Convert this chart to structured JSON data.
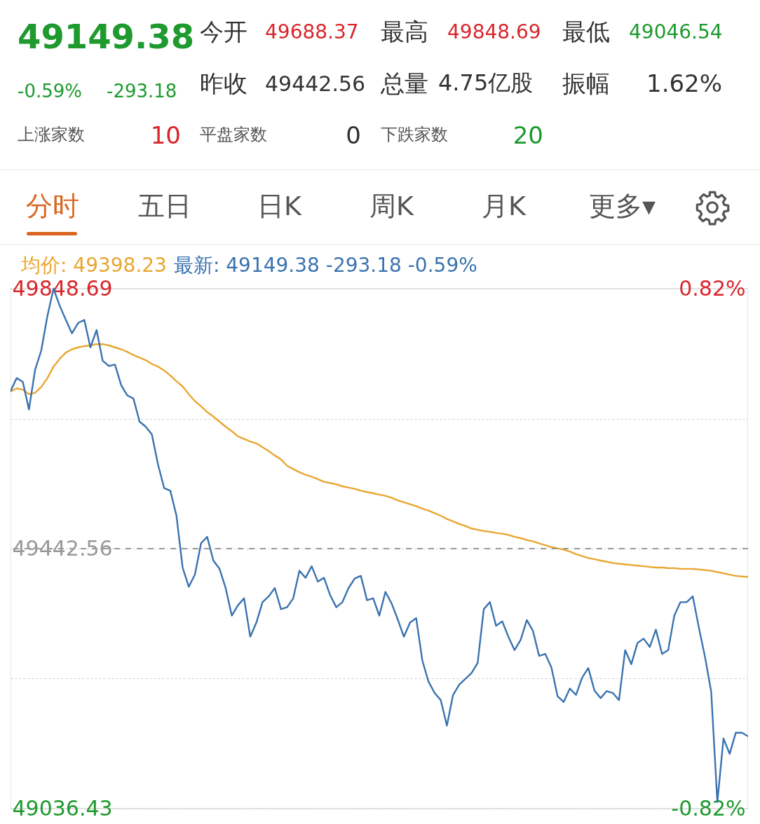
{
  "chart_data": {
    "type": "line",
    "annotations": [
      "49149.38",
      "-0.59%",
      "-293.18",
      "今开",
      "49688.37",
      "最高",
      "49848.69",
      "最低",
      "49046.54",
      "昨收",
      "49442.56",
      "总量",
      "4.75亿股",
      "振幅",
      "1.62%",
      "上涨家数",
      "10",
      "平盘家数",
      "0",
      "下跌家数",
      "20",
      "分时",
      "五日",
      "日K",
      "周K",
      "月K",
      "更多▾"
    ],
    "categories": [
      null,
      null,
      null,
      null,
      null,
      null,
      null,
      null,
      null,
      null,
      null,
      null,
      null,
      null,
      null,
      null,
      null,
      null,
      null,
      null,
      null,
      null,
      null,
      null,
      null,
      null,
      null,
      null,
      null,
      null,
      null,
      null,
      null,
      null,
      null,
      null,
      null,
      null,
      null,
      null,
      null,
      null,
      null,
      null,
      null,
      null,
      null,
      null,
      null,
      null,
      null,
      null,
      null,
      null,
      null,
      null,
      null,
      null,
      null,
      null,
      null,
      null,
      null,
      null,
      null,
      null,
      null,
      null,
      null,
      null,
      null,
      null,
      null,
      null,
      null,
      null,
      null,
      null,
      null,
      null,
      null,
      null,
      null,
      null,
      null,
      null,
      null,
      null,
      null,
      null,
      null,
      null,
      null,
      null,
      null,
      null,
      null,
      null,
      null,
      null,
      null,
      null,
      null,
      null,
      null,
      null,
      null,
      null,
      null,
      null,
      null,
      null,
      null,
      null,
      null,
      null,
      null,
      null,
      null,
      null,
      null
    ],
    "series": [
      {
        "name": "均价: 49398.23",
        "color": "#e9a630",
        "values": [
          49688,
          49693,
          49691,
          49684,
          49686,
          49695,
          49709,
          49727,
          49739,
          49749,
          49754,
          49757,
          49759,
          49760,
          49762,
          49762,
          49760,
          49757,
          49754,
          49750,
          49745,
          49741,
          49737,
          49731,
          49727,
          49721,
          49713,
          49704,
          49696,
          49684,
          49673,
          49665,
          49656,
          49649,
          49641,
          49633,
          49626,
          49618,
          49614,
          49610,
          49607,
          49601,
          49595,
          49588,
          49582,
          49572,
          49567,
          49562,
          49558,
          49555,
          49551,
          49547,
          49545,
          49543,
          49540,
          49538,
          49536,
          49533,
          49531,
          49529,
          49527,
          49525,
          49522,
          49518,
          49515,
          49512,
          49509,
          49505,
          49502,
          49498,
          49494,
          49489,
          49485,
          49481,
          49478,
          49474,
          49472,
          49470,
          49469,
          49467,
          49466,
          49464,
          49461,
          49459,
          49456,
          49454,
          49451,
          49448,
          49445,
          49443,
          49441,
          49438,
          49434,
          49431,
          49428,
          49426,
          49424,
          49422,
          49420,
          49419,
          49418,
          49417,
          49416,
          49415,
          49414,
          49413,
          49413,
          49412,
          49412,
          49411,
          49411,
          49411,
          49410,
          49409,
          49408,
          49406,
          49404,
          49402,
          49400,
          49399,
          49398.23
        ]
      },
      {
        "name": "最新: 49149.38 -293.18 -0.59%",
        "color": "#3a73b0",
        "values": [
          49688.37,
          49709,
          49703,
          49660,
          49722,
          49752,
          49806,
          49848.69,
          49822,
          49800,
          49779,
          49795,
          49800,
          49757,
          49784,
          49736,
          49728,
          49730,
          49698,
          49682,
          49677,
          49641,
          49633,
          49621,
          49574,
          49537,
          49533,
          49494,
          49413,
          49383,
          49402,
          49451,
          49461,
          49424,
          49411,
          49381,
          49338,
          49354,
          49365,
          49305,
          49327,
          49359,
          49368,
          49381,
          49348,
          49351,
          49365,
          49408,
          49397,
          49415,
          49391,
          49397,
          49370,
          49351,
          49359,
          49381,
          49396,
          49400,
          49362,
          49365,
          49338,
          49375,
          49357,
          49332,
          49305,
          49327,
          49334,
          49268,
          49235,
          49217,
          49206,
          49166,
          49214,
          49230,
          49239,
          49248,
          49264,
          49348,
          49359,
          49322,
          49329,
          49305,
          49284,
          49300,
          49331,
          49314,
          49275,
          49278,
          49257,
          49212,
          49203,
          49224,
          49214,
          49241,
          49256,
          49221,
          49209,
          49220,
          49217,
          49206,
          49284,
          49262,
          49295,
          49302,
          49289,
          49316,
          49278,
          49284,
          49338,
          49359,
          49359,
          49368,
          49319,
          49273,
          49219,
          49046.54,
          49146,
          49122,
          49155,
          49155,
          49149.38
        ]
      }
    ],
    "ylim": [
      49036.43,
      49848.69
    ],
    "yticks": [
      49848.69,
      {
        "value": 49645.625,
        "label": null
      },
      49442.56,
      {
        "value": 49239.495,
        "label": null
      },
      49036.43
    ],
    "y2lim": [
      -0.82,
      0.82
    ],
    "y2ticks": [
      {
        "value": 0.82,
        "label": "0.82%"
      },
      {
        "value": -0.82,
        "label": "-0.82%"
      }
    ],
    "ref_lines": [
      {
        "axis": "y2",
        "value": 0,
        "line_style": "dashed",
        "color": "#999999"
      }
    ],
    "grid": true,
    "legend": "top left"
  }
}
